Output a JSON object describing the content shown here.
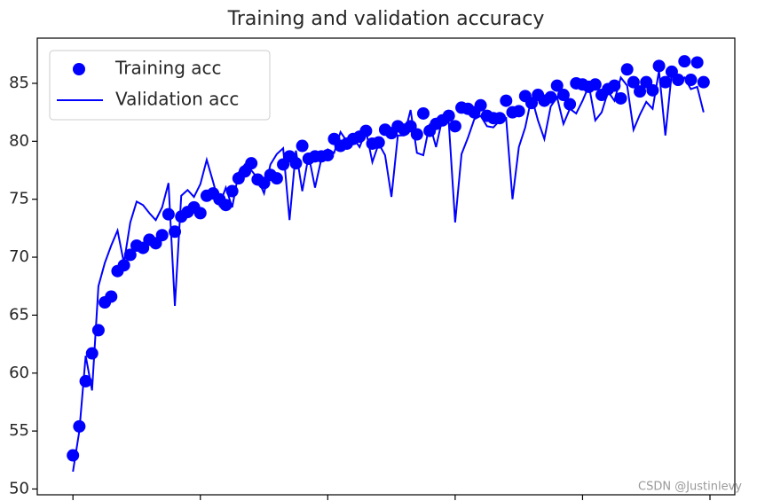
{
  "chart_data": {
    "type": "line",
    "title": "Training and validation accuracy",
    "x": [
      0,
      1,
      2,
      3,
      4,
      5,
      6,
      7,
      8,
      9,
      10,
      11,
      12,
      13,
      14,
      15,
      16,
      17,
      18,
      19,
      20,
      21,
      22,
      23,
      24,
      25,
      26,
      27,
      28,
      29,
      30,
      31,
      32,
      33,
      34,
      35,
      36,
      37,
      38,
      39,
      40,
      41,
      42,
      43,
      44,
      45,
      46,
      47,
      48,
      49,
      50,
      51,
      52,
      53,
      54,
      55,
      56,
      57,
      58,
      59,
      60,
      61,
      62,
      63,
      64,
      65,
      66,
      67,
      68,
      69,
      70,
      71,
      72,
      73,
      74,
      75,
      76,
      77,
      78,
      79,
      80,
      81,
      82,
      83,
      84,
      85,
      86,
      87,
      88,
      89,
      90,
      91,
      92,
      93,
      94,
      95,
      96,
      97,
      98,
      99
    ],
    "series": [
      {
        "name": "Training acc",
        "color": "#0000ff",
        "mode": "markers",
        "values": [
          52.9,
          55.4,
          59.3,
          61.7,
          63.7,
          66.1,
          66.6,
          68.8,
          69.3,
          70.2,
          71.0,
          70.8,
          71.5,
          71.2,
          71.9,
          73.7,
          72.2,
          73.5,
          73.9,
          74.3,
          73.8,
          75.3,
          75.5,
          75.0,
          74.5,
          75.7,
          76.8,
          77.4,
          78.1,
          76.7,
          76.4,
          77.1,
          76.8,
          78.0,
          78.7,
          78.1,
          79.6,
          78.5,
          78.7,
          78.7,
          78.8,
          80.2,
          79.6,
          79.8,
          80.2,
          80.4,
          80.9,
          79.8,
          79.9,
          81.0,
          80.7,
          81.3,
          81.0,
          81.3,
          80.6,
          82.4,
          80.9,
          81.5,
          81.8,
          82.2,
          81.3,
          82.9,
          82.8,
          82.5,
          83.1,
          82.2,
          82.0,
          82.0,
          83.5,
          82.5,
          82.6,
          83.9,
          83.3,
          84.0,
          83.5,
          83.8,
          84.8,
          84.0,
          83.2,
          85.0,
          84.9,
          84.7,
          84.9,
          84.0,
          84.5,
          84.8,
          83.7,
          86.2,
          85.1,
          84.3,
          85.1,
          84.4,
          86.5,
          85.1,
          86.0,
          85.3,
          86.9,
          85.3,
          86.8,
          85.1
        ]
      },
      {
        "name": "Validation acc",
        "color": "#0000ff",
        "mode": "lines",
        "values": [
          51.5,
          55.0,
          61.5,
          58.5,
          67.5,
          69.5,
          71.0,
          72.3,
          69.5,
          73.0,
          74.8,
          74.5,
          73.8,
          73.2,
          74.3,
          76.4,
          65.8,
          75.3,
          75.8,
          75.2,
          76.3,
          78.4,
          76.5,
          74.5,
          76.0,
          74.3,
          77.3,
          78.0,
          77.5,
          76.8,
          75.5,
          78.0,
          78.9,
          79.4,
          73.2,
          79.2,
          75.7,
          78.8,
          76.0,
          78.5,
          79.3,
          79.0,
          80.8,
          80.0,
          80.3,
          79.5,
          80.9,
          78.2,
          79.8,
          78.8,
          75.2,
          80.5,
          80.5,
          82.7,
          79.0,
          78.8,
          81.5,
          79.5,
          82.0,
          81.6,
          73.0,
          78.9,
          80.3,
          81.9,
          82.2,
          81.3,
          81.2,
          81.8,
          82.0,
          75.0,
          79.5,
          81.2,
          83.8,
          81.8,
          80.2,
          83.0,
          83.8,
          81.5,
          82.8,
          82.4,
          83.5,
          84.8,
          81.8,
          82.5,
          84.3,
          83.5,
          85.5,
          84.8,
          81.0,
          82.3,
          83.4,
          82.8,
          86.1,
          80.5,
          85.9,
          85.0,
          85.5,
          84.5,
          84.7,
          82.5
        ]
      }
    ],
    "xlim": [
      -5.6,
      103.9
    ],
    "xticks": [
      0,
      20,
      40,
      60,
      80,
      100
    ],
    "ylim": [
      49.5,
      88.9
    ],
    "yticks": [
      50,
      55,
      60,
      65,
      70,
      75,
      80,
      85
    ],
    "legend": "upper left",
    "watermark": "CSDN @Justinlevy"
  }
}
